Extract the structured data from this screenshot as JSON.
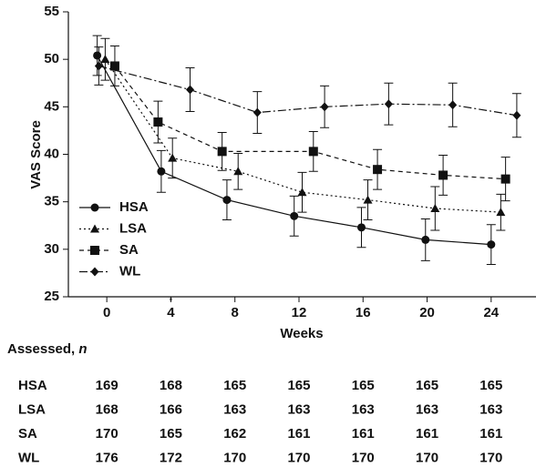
{
  "chart_data": {
    "type": "line",
    "y_label": "VAS Score",
    "x_label": "Weeks",
    "xlim": [
      -2.4,
      26.8
    ],
    "xticks": [
      0,
      4,
      8,
      12,
      16,
      20,
      24
    ],
    "ylim": [
      25,
      55
    ],
    "yticks": [
      25,
      30,
      35,
      40,
      45,
      50,
      55
    ],
    "legend": "lower left",
    "annotations": [
      {
        "text": "*",
        "x": 4
      }
    ],
    "series": [
      {
        "name": "HSA",
        "color": "#111111",
        "linestyle": "solid",
        "marker": "circle",
        "x": [
          -0.6,
          3.4,
          7.5,
          11.7,
          15.9,
          19.9,
          24.0
        ],
        "values": [
          50.4,
          38.2,
          35.2,
          33.5,
          32.3,
          31.0,
          30.5
        ],
        "errors": [
          2.1,
          2.2,
          2.1,
          2.1,
          2.1,
          2.2,
          2.1
        ]
      },
      {
        "name": "LSA",
        "color": "#111111",
        "linestyle": "dotted",
        "marker": "triangle",
        "x": [
          -0.1,
          4.1,
          8.2,
          12.2,
          16.3,
          20.5,
          24.6
        ],
        "values": [
          50.0,
          39.6,
          38.2,
          36.0,
          35.2,
          34.3,
          33.9
        ],
        "errors": [
          2.2,
          2.1,
          1.9,
          2.1,
          2.1,
          2.3,
          1.9
        ]
      },
      {
        "name": "SA",
        "color": "#111111",
        "linestyle": "dashed",
        "marker": "square",
        "x": [
          0.5,
          3.2,
          7.2,
          12.9,
          16.9,
          21.0,
          24.9
        ],
        "values": [
          49.3,
          43.4,
          40.3,
          40.3,
          38.4,
          37.8,
          37.4
        ],
        "errors": [
          2.1,
          2.2,
          2.0,
          2.1,
          2.1,
          2.1,
          2.3
        ]
      },
      {
        "name": "WL",
        "color": "#111111",
        "linestyle": "dashdot",
        "marker": "diamond",
        "x": [
          -0.5,
          5.2,
          9.4,
          13.6,
          17.6,
          21.6,
          25.6
        ],
        "values": [
          49.3,
          46.8,
          44.4,
          45.0,
          45.3,
          45.2,
          44.1
        ],
        "errors": [
          2.0,
          2.3,
          2.2,
          2.2,
          2.2,
          2.3,
          2.3
        ]
      }
    ]
  },
  "table": {
    "title": [
      "Assessed,",
      "n"
    ],
    "rows": [
      [
        "HSA",
        169,
        168,
        165,
        165,
        165,
        165,
        165
      ],
      [
        "LSA",
        168,
        166,
        163,
        163,
        163,
        163,
        163
      ],
      [
        "SA",
        170,
        165,
        162,
        161,
        161,
        161,
        161
      ],
      [
        "WL",
        176,
        172,
        170,
        170,
        170,
        170,
        170
      ]
    ]
  }
}
